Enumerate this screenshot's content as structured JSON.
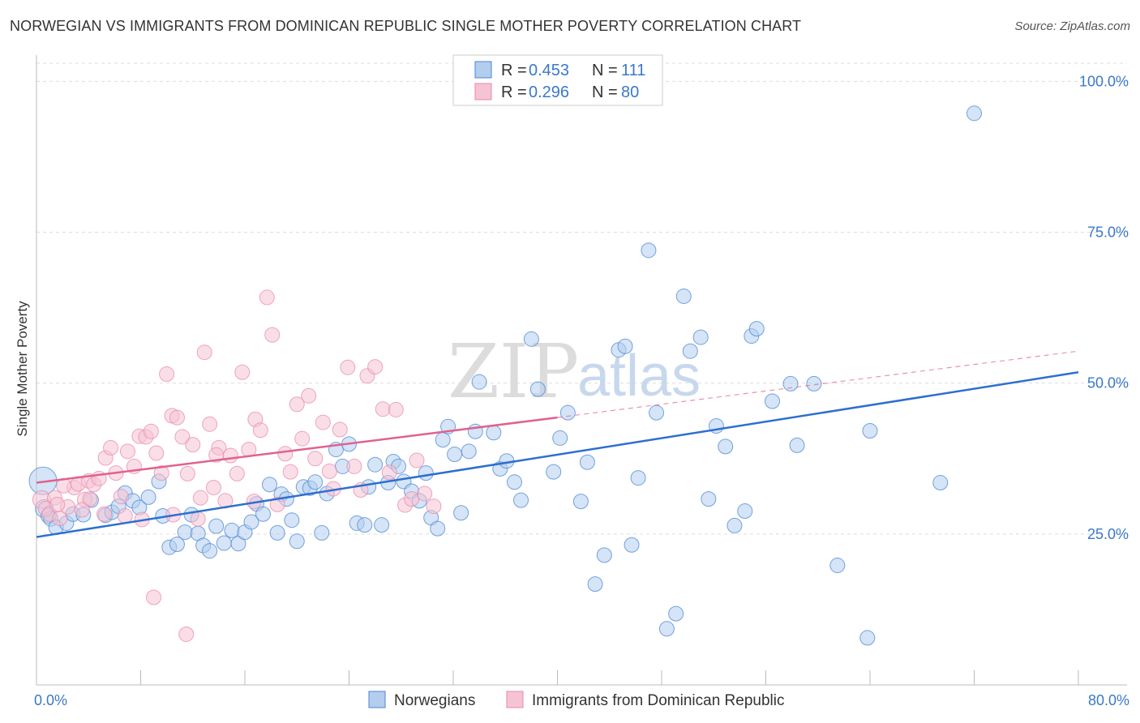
{
  "title": "NORWEGIAN VS IMMIGRANTS FROM DOMINICAN REPUBLIC SINGLE MOTHER POVERTY CORRELATION CHART",
  "source": "Source: ZipAtlas.com",
  "watermark": {
    "zip": "ZIP",
    "atlas": "atlas"
  },
  "colors": {
    "blue": "#4a86d4",
    "blue_fill": "#b3cdee",
    "blue_line": "#2d6fcf",
    "pink": "#e889a8",
    "pink_fill": "#f6c3d3",
    "pink_line": "#e0628e",
    "axis_text": "#3a78c9",
    "grid": "#dddddd"
  },
  "legend": {
    "rows": [
      {
        "r_label": "R =",
        "r_value": "0.453",
        "n_label": "N =",
        "n_value": "111",
        "series": "blue"
      },
      {
        "r_label": "R =",
        "r_value": "0.296",
        "n_label": "N =",
        "n_value": "80",
        "series": "pink"
      }
    ]
  },
  "bottom_legend": [
    "Norwegians",
    "Immigrants from Dominican Republic"
  ],
  "chart_data": {
    "type": "scatter",
    "title": "NORWEGIAN VS IMMIGRANTS FROM DOMINICAN REPUBLIC SINGLE MOTHER POVERTY CORRELATION CHART",
    "xlabel": "",
    "ylabel": "Single Mother Poverty",
    "xlim": [
      0,
      80
    ],
    "ylim": [
      0,
      103
    ],
    "x_tick_labels": [
      {
        "value": 0,
        "label": "0.0%"
      },
      {
        "value": 80,
        "label": "80.0%"
      }
    ],
    "x_minor_ticks": [
      0,
      8,
      16,
      24,
      32,
      40,
      48,
      56,
      64,
      72,
      80
    ],
    "y_ticks": [
      {
        "value": 25,
        "label": "25.0%"
      },
      {
        "value": 50,
        "label": "50.0%"
      },
      {
        "value": 75,
        "label": "75.0%"
      },
      {
        "value": 100,
        "label": "100.0%"
      }
    ],
    "grid": true,
    "legend_position": "top-center",
    "series": [
      {
        "name": "Norwegians",
        "color": "blue",
        "trend": {
          "x": [
            0,
            80
          ],
          "y": [
            24.5,
            51.8
          ],
          "dashed_from": null
        },
        "points": [
          [
            0.5,
            33.8,
            3
          ],
          [
            0.6,
            29.2,
            2
          ],
          [
            0.9,
            28.0,
            1
          ],
          [
            1.1,
            27.5,
            1
          ],
          [
            1.5,
            26.1,
            1
          ],
          [
            2.3,
            26.8,
            1
          ],
          [
            2.8,
            28.3,
            1
          ],
          [
            3.6,
            28.2,
            1
          ],
          [
            4.2,
            30.6,
            1
          ],
          [
            5.3,
            28.1,
            1
          ],
          [
            5.8,
            28.6,
            1
          ],
          [
            6.3,
            29.6,
            1
          ],
          [
            6.8,
            31.8,
            1
          ],
          [
            7.4,
            30.5,
            1
          ],
          [
            7.9,
            29.4,
            1
          ],
          [
            8.6,
            31.1,
            1
          ],
          [
            9.4,
            33.7,
            1
          ],
          [
            9.7,
            28.0,
            1
          ],
          [
            10.2,
            22.8,
            1
          ],
          [
            10.8,
            23.3,
            1
          ],
          [
            11.4,
            25.3,
            1
          ],
          [
            11.9,
            28.2,
            1
          ],
          [
            12.4,
            25.1,
            1
          ],
          [
            12.8,
            23.1,
            1
          ],
          [
            13.3,
            22.2,
            1
          ],
          [
            13.8,
            26.3,
            1
          ],
          [
            14.4,
            23.5,
            1
          ],
          [
            15.0,
            25.6,
            1
          ],
          [
            15.5,
            23.4,
            1
          ],
          [
            16.0,
            25.3,
            1
          ],
          [
            16.5,
            27.0,
            1
          ],
          [
            16.9,
            30.0,
            1
          ],
          [
            17.4,
            28.3,
            1
          ],
          [
            17.9,
            33.2,
            1
          ],
          [
            18.5,
            25.2,
            1
          ],
          [
            18.8,
            31.6,
            1
          ],
          [
            19.2,
            30.8,
            1
          ],
          [
            19.6,
            27.3,
            1
          ],
          [
            20.0,
            23.8,
            1
          ],
          [
            20.5,
            32.8,
            1
          ],
          [
            21.0,
            32.6,
            1
          ],
          [
            21.4,
            33.6,
            1
          ],
          [
            21.9,
            25.2,
            1
          ],
          [
            22.3,
            31.7,
            1
          ],
          [
            23.0,
            39.0,
            1
          ],
          [
            23.5,
            36.2,
            1
          ],
          [
            24.0,
            39.9,
            1
          ],
          [
            24.6,
            26.8,
            1
          ],
          [
            25.2,
            26.5,
            1
          ],
          [
            25.5,
            32.8,
            1
          ],
          [
            26.0,
            36.5,
            1
          ],
          [
            26.5,
            26.5,
            1
          ],
          [
            27.0,
            33.5,
            1
          ],
          [
            27.4,
            37.0,
            1
          ],
          [
            27.8,
            36.2,
            1
          ],
          [
            28.2,
            33.7,
            1
          ],
          [
            28.8,
            32.1,
            1
          ],
          [
            29.4,
            30.5,
            1
          ],
          [
            29.9,
            35.1,
            1
          ],
          [
            30.3,
            27.7,
            1
          ],
          [
            30.8,
            25.9,
            1
          ],
          [
            31.2,
            40.6,
            1
          ],
          [
            31.6,
            42.8,
            1
          ],
          [
            32.1,
            38.2,
            1
          ],
          [
            32.6,
            28.5,
            1
          ],
          [
            33.2,
            38.7,
            1
          ],
          [
            33.7,
            42.0,
            1
          ],
          [
            34.0,
            50.2,
            1
          ],
          [
            35.1,
            41.8,
            1
          ],
          [
            35.6,
            35.8,
            1
          ],
          [
            36.1,
            37.1,
            1
          ],
          [
            36.7,
            33.6,
            1
          ],
          [
            37.2,
            30.6,
            1
          ],
          [
            38.0,
            57.3,
            1
          ],
          [
            38.5,
            49.0,
            1
          ],
          [
            39.7,
            35.3,
            1
          ],
          [
            40.2,
            40.9,
            1
          ],
          [
            40.8,
            45.1,
            1
          ],
          [
            41.8,
            30.4,
            1
          ],
          [
            42.3,
            36.9,
            1
          ],
          [
            42.9,
            16.7,
            1
          ],
          [
            43.6,
            21.5,
            1
          ],
          [
            44.7,
            55.5,
            1
          ],
          [
            45.2,
            56.1,
            1
          ],
          [
            45.7,
            23.2,
            1
          ],
          [
            46.2,
            34.3,
            1
          ],
          [
            47.0,
            72.0,
            1
          ],
          [
            47.6,
            45.1,
            1
          ],
          [
            48.4,
            9.3,
            1
          ],
          [
            49.1,
            11.8,
            1
          ],
          [
            49.7,
            64.4,
            1
          ],
          [
            50.2,
            55.3,
            1
          ],
          [
            51.0,
            57.6,
            1
          ],
          [
            51.6,
            30.8,
            1
          ],
          [
            52.2,
            42.9,
            1
          ],
          [
            52.9,
            39.5,
            1
          ],
          [
            53.6,
            26.4,
            1
          ],
          [
            54.4,
            28.8,
            1
          ],
          [
            54.9,
            57.8,
            1
          ],
          [
            55.3,
            59.0,
            1
          ],
          [
            56.5,
            47.0,
            1
          ],
          [
            57.9,
            49.9,
            1
          ],
          [
            58.4,
            39.7,
            1
          ],
          [
            59.7,
            49.9,
            1
          ],
          [
            61.5,
            19.8,
            1
          ],
          [
            63.8,
            7.8,
            1
          ],
          [
            64.0,
            42.1,
            1
          ],
          [
            69.4,
            33.5,
            1
          ],
          [
            72.0,
            94.7,
            1
          ]
        ]
      },
      {
        "name": "Immigrants from Dominican Republic",
        "color": "pink",
        "trend": {
          "x": [
            0,
            40,
            80
          ],
          "y": [
            33.5,
            44.3,
            55.3
          ],
          "dashed_from": 40
        },
        "points": [
          [
            0.4,
            30.7,
            2
          ],
          [
            0.7,
            29.2,
            1
          ],
          [
            1.0,
            28.3,
            1
          ],
          [
            1.4,
            31.0,
            1
          ],
          [
            1.8,
            27.6,
            1
          ],
          [
            2.4,
            29.5,
            1
          ],
          [
            2.9,
            32.7,
            1
          ],
          [
            3.2,
            33.3,
            1
          ],
          [
            3.7,
            30.7,
            1
          ],
          [
            4.0,
            33.8,
            1
          ],
          [
            4.4,
            33.2,
            1
          ],
          [
            4.8,
            34.2,
            1
          ],
          [
            5.3,
            37.6,
            1
          ],
          [
            5.7,
            39.3,
            1
          ],
          [
            6.1,
            35.1,
            1
          ],
          [
            6.5,
            31.2,
            1
          ],
          [
            7.0,
            38.7,
            1
          ],
          [
            7.5,
            36.2,
            1
          ],
          [
            7.9,
            41.2,
            1
          ],
          [
            8.4,
            41.1,
            1
          ],
          [
            8.8,
            42.0,
            1
          ],
          [
            9.2,
            38.4,
            1
          ],
          [
            9.6,
            35.1,
            1
          ],
          [
            10.0,
            51.5,
            1
          ],
          [
            10.4,
            44.6,
            1
          ],
          [
            10.8,
            44.3,
            1
          ],
          [
            11.2,
            41.1,
            1
          ],
          [
            11.6,
            35.0,
            1
          ],
          [
            12.0,
            39.8,
            1
          ],
          [
            12.4,
            27.5,
            1
          ],
          [
            12.9,
            55.1,
            1
          ],
          [
            13.3,
            43.2,
            1
          ],
          [
            13.6,
            32.7,
            1
          ],
          [
            14.0,
            39.3,
            1
          ],
          [
            14.5,
            30.5,
            1
          ],
          [
            14.9,
            38.0,
            1
          ],
          [
            15.4,
            35.0,
            1
          ],
          [
            15.8,
            51.8,
            1
          ],
          [
            16.3,
            39.0,
            1
          ],
          [
            16.8,
            44.0,
            1
          ],
          [
            17.2,
            42.2,
            1
          ],
          [
            17.7,
            64.2,
            1
          ],
          [
            18.1,
            58.0,
            1
          ],
          [
            18.5,
            29.9,
            1
          ],
          [
            19.1,
            38.3,
            1
          ],
          [
            19.5,
            35.3,
            1
          ],
          [
            20.0,
            46.5,
            1
          ],
          [
            20.4,
            40.8,
            1
          ],
          [
            20.9,
            47.9,
            1
          ],
          [
            21.4,
            37.5,
            1
          ],
          [
            22.0,
            43.5,
            1
          ],
          [
            22.8,
            32.5,
            1
          ],
          [
            23.3,
            42.3,
            1
          ],
          [
            23.9,
            52.6,
            1
          ],
          [
            24.4,
            36.2,
            1
          ],
          [
            24.9,
            32.3,
            1
          ],
          [
            25.4,
            51.2,
            1
          ],
          [
            26.0,
            52.7,
            1
          ],
          [
            26.6,
            45.7,
            1
          ],
          [
            27.1,
            35.2,
            1
          ],
          [
            27.6,
            45.6,
            1
          ],
          [
            28.3,
            29.8,
            1
          ],
          [
            28.8,
            30.8,
            1
          ],
          [
            29.2,
            37.2,
            1
          ],
          [
            29.8,
            31.7,
            1
          ],
          [
            10.5,
            28.2,
            1
          ],
          [
            9.0,
            14.5,
            1
          ],
          [
            11.5,
            8.4,
            1
          ],
          [
            12.6,
            31.0,
            1
          ],
          [
            6.8,
            28.0,
            1
          ],
          [
            5.2,
            28.3,
            1
          ],
          [
            4.1,
            30.8,
            1
          ],
          [
            3.5,
            29.0,
            1
          ],
          [
            2.1,
            33.0,
            1
          ],
          [
            1.6,
            29.9,
            1
          ],
          [
            8.1,
            27.4,
            1
          ],
          [
            30.5,
            29.6,
            1
          ],
          [
            22.5,
            35.4,
            1
          ],
          [
            16.7,
            30.4,
            1
          ],
          [
            13.8,
            38.1,
            1
          ]
        ]
      }
    ]
  }
}
